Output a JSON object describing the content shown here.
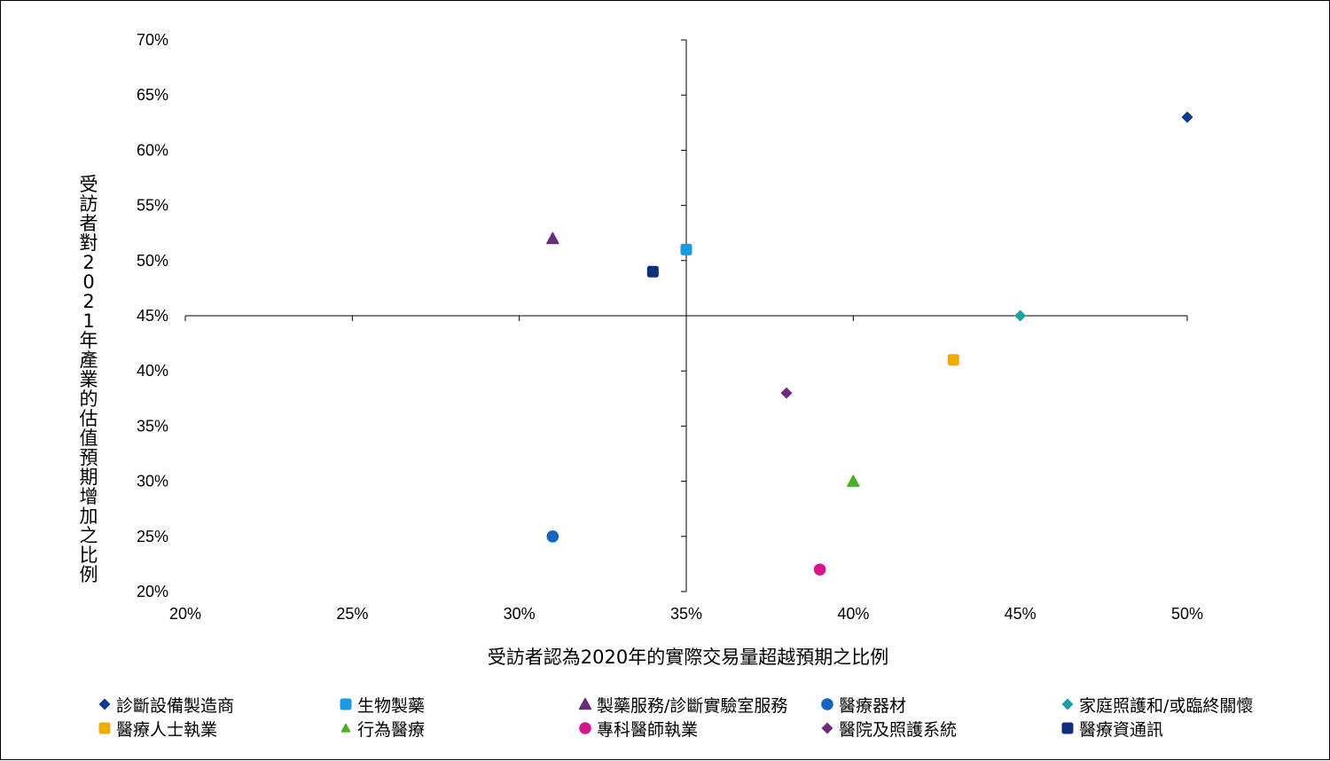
{
  "chart_data": {
    "type": "scatter",
    "xlabel": "受訪者認為2020年的實際交易量超越預期之比例",
    "ylabel": "受訪者對2021年產業的估值預期增加之比例",
    "xlim": [
      0.2,
      0.5
    ],
    "ylim": [
      0.2,
      0.7
    ],
    "x_ticks": [
      "20%",
      "25%",
      "30%",
      "35%",
      "40%",
      "45%",
      "50%"
    ],
    "y_ticks": [
      "20%",
      "25%",
      "30%",
      "35%",
      "40%",
      "45%",
      "50%",
      "55%",
      "60%",
      "65%",
      "70%"
    ],
    "x_tick_values": [
      0.2,
      0.25,
      0.3,
      0.35,
      0.4,
      0.45,
      0.5
    ],
    "y_tick_values": [
      0.2,
      0.25,
      0.3,
      0.35,
      0.4,
      0.45,
      0.5,
      0.55,
      0.6,
      0.65,
      0.7
    ],
    "axis_cross": {
      "x": 0.35,
      "y": 0.45
    },
    "grid": false,
    "legend_placement": "bottom",
    "series": [
      {
        "name": "診斷設備製造商",
        "x": 0.5,
        "y": 0.63,
        "marker": "diamond",
        "color": "#0d3a8c"
      },
      {
        "name": "生物製藥",
        "x": 0.35,
        "y": 0.51,
        "marker": "square",
        "color": "#1a9ae0"
      },
      {
        "name": "製藥服務/診斷實驗室服務",
        "x": 0.31,
        "y": 0.52,
        "marker": "triangle",
        "color": "#6b2c7e"
      },
      {
        "name": "醫療器材",
        "x": 0.31,
        "y": 0.25,
        "marker": "circle",
        "color": "#1565c0"
      },
      {
        "name": "家庭照護和/或臨終關懷",
        "x": 0.45,
        "y": 0.45,
        "marker": "diamond",
        "color": "#17a3a6"
      },
      {
        "name": "醫療人士執業",
        "x": 0.43,
        "y": 0.41,
        "marker": "square",
        "color": "#f0ac00"
      },
      {
        "name": "行為醫療",
        "x": 0.4,
        "y": 0.3,
        "marker": "triangle",
        "color": "#4caf29"
      },
      {
        "name": "專科醫師執業",
        "x": 0.39,
        "y": 0.22,
        "marker": "circle",
        "color": "#d6158a"
      },
      {
        "name": "醫院及照護系統",
        "x": 0.38,
        "y": 0.38,
        "marker": "diamond",
        "color": "#6b2c7e"
      },
      {
        "name": "醫療資通訊",
        "x": 0.34,
        "y": 0.49,
        "marker": "square",
        "color": "#0d2f7e"
      }
    ]
  }
}
